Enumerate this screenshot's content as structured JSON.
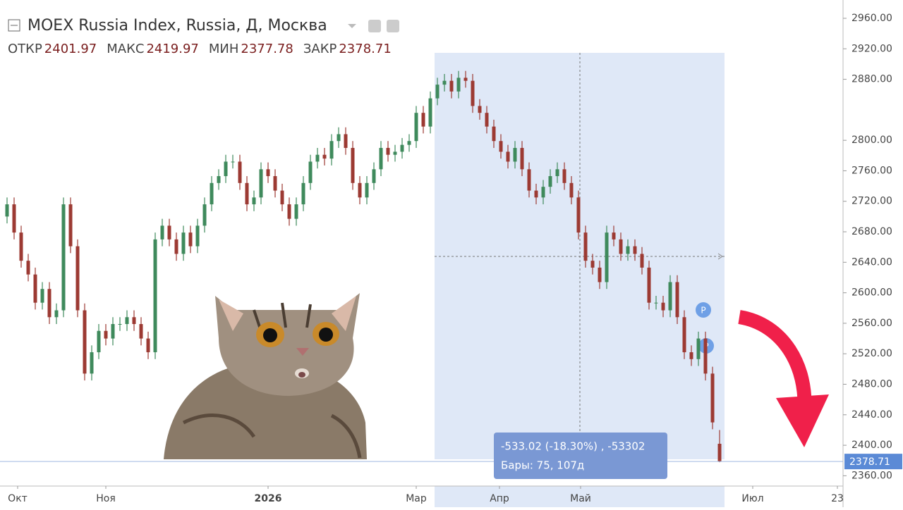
{
  "chart_data": {
    "type": "candlestick",
    "title": "MOEX Russia Index, Russia, Д, Москва",
    "ohlc_labels": [
      "ОТКР",
      "МАКС",
      "МИН",
      "ЗАКР"
    ],
    "ohlc_values": [
      2401.97,
      2419.97,
      2377.78,
      2378.71
    ],
    "last_price": 2378.71,
    "measure_label": [
      "-533.02 (-18.30%) , -53302",
      "Бары: 75, 107д"
    ],
    "up_color": "#3f8a5c",
    "down_color": "#9c3a33",
    "xlim": [
      0,
      119.5
    ],
    "xticks": [
      {
        "value": 2.5,
        "label": "Окт"
      },
      {
        "value": 15,
        "label": "Ноя"
      },
      {
        "value": 38,
        "label": "2026"
      },
      {
        "value": 59,
        "label": "Мар"
      },
      {
        "value": 70.8,
        "label": "Апр"
      },
      {
        "value": 82.3,
        "label": "Май"
      },
      {
        "value": 106.7,
        "label": "Июл"
      },
      {
        "value": 118.7,
        "label": "23"
      }
    ],
    "ylim": [
      2346.5,
      2984
    ],
    "yticks": [
      {
        "value": 2960,
        "label": "2960.00"
      },
      {
        "value": 2920,
        "label": "2920.00"
      },
      {
        "value": 2880,
        "label": "2880.00"
      },
      {
        "value": 2800,
        "label": "2800.00"
      },
      {
        "value": 2760,
        "label": "2760.00"
      },
      {
        "value": 2720,
        "label": "2720.00"
      },
      {
        "value": 2680,
        "label": "2680.00"
      },
      {
        "value": 2640,
        "label": "2640.00"
      },
      {
        "value": 2600,
        "label": "2600.00"
      },
      {
        "value": 2560,
        "label": "2560.00"
      },
      {
        "value": 2520,
        "label": "2520.00"
      },
      {
        "value": 2480,
        "label": "2480.00"
      },
      {
        "value": 2440,
        "label": "2440.00"
      },
      {
        "value": 2400,
        "label": "2400.00"
      },
      {
        "value": 2360,
        "label": "2360.00"
      }
    ],
    "x": [
      1,
      2,
      3,
      4,
      5,
      6,
      7,
      8,
      9,
      10,
      11,
      12,
      13,
      14,
      15,
      16,
      17,
      18,
      19,
      20,
      21,
      22,
      23,
      24,
      25,
      26,
      27,
      28,
      29,
      30,
      31,
      32,
      33,
      34,
      35,
      36,
      37,
      38,
      39,
      40,
      41,
      42,
      43,
      44,
      45,
      46,
      47,
      48,
      49,
      50,
      51,
      52,
      53,
      54,
      55,
      56,
      57,
      58,
      59,
      60,
      61,
      62,
      63,
      64,
      65,
      66,
      67,
      68,
      69,
      70,
      71,
      72,
      73,
      74,
      75,
      76,
      77,
      78,
      79,
      80,
      81,
      82,
      83,
      84,
      85,
      86,
      87,
      88,
      89,
      90,
      91,
      92,
      93,
      94,
      95,
      96,
      97,
      98,
      99,
      100,
      101,
      102
    ],
    "open": [
      2700,
      2716,
      2679,
      2642,
      2624,
      2587,
      2605,
      2568,
      2577,
      2716,
      2661,
      2577,
      2494,
      2522,
      2550,
      2540,
      2559,
      2559,
      2568,
      2559,
      2540,
      2522,
      2670,
      2688,
      2670,
      2651,
      2679,
      2661,
      2688,
      2716,
      2744,
      2753,
      2772,
      2772,
      2744,
      2716,
      2725,
      2762,
      2753,
      2734,
      2716,
      2697,
      2716,
      2744,
      2772,
      2781,
      2776,
      2799,
      2808,
      2790,
      2744,
      2725,
      2744,
      2762,
      2790,
      2781,
      2785,
      2794,
      2799,
      2836,
      2818,
      2855,
      2873,
      2878,
      2864,
      2882,
      2878,
      2845,
      2836,
      2818,
      2799,
      2785,
      2772,
      2790,
      2762,
      2734,
      2725,
      2739,
      2753,
      2762,
      2744,
      2725,
      2679,
      2642,
      2633,
      2614,
      2679,
      2670,
      2651,
      2661,
      2651,
      2633,
      2587,
      2587,
      2577,
      2614,
      2568,
      2522,
      2513,
      2540,
      2494,
      2401.97
    ],
    "high": [
      2725,
      2725,
      2688,
      2651,
      2633,
      2614,
      2614,
      2586,
      2725,
      2725,
      2670,
      2586,
      2531,
      2559,
      2559,
      2568,
      2568,
      2577,
      2577,
      2568,
      2549,
      2679,
      2697,
      2697,
      2679,
      2688,
      2688,
      2697,
      2725,
      2753,
      2762,
      2781,
      2781,
      2781,
      2753,
      2734,
      2771,
      2771,
      2762,
      2743,
      2725,
      2725,
      2753,
      2781,
      2790,
      2790,
      2808,
      2817,
      2817,
      2799,
      2753,
      2753,
      2771,
      2799,
      2799,
      2794,
      2803,
      2808,
      2845,
      2845,
      2864,
      2882,
      2887,
      2887,
      2891,
      2891,
      2887,
      2854,
      2845,
      2827,
      2808,
      2794,
      2799,
      2799,
      2771,
      2743,
      2748,
      2762,
      2771,
      2771,
      2753,
      2734,
      2688,
      2651,
      2642,
      2688,
      2688,
      2679,
      2670,
      2670,
      2660,
      2642,
      2596,
      2596,
      2623,
      2623,
      2577,
      2531,
      2549,
      2549,
      2503,
      2419.97
    ],
    "low": [
      2691,
      2670,
      2633,
      2615,
      2578,
      2578,
      2559,
      2559,
      2568,
      2652,
      2568,
      2485,
      2485,
      2513,
      2531,
      2531,
      2550,
      2550,
      2550,
      2531,
      2513,
      2513,
      2661,
      2661,
      2642,
      2642,
      2652,
      2652,
      2679,
      2707,
      2735,
      2744,
      2763,
      2735,
      2707,
      2707,
      2716,
      2744,
      2725,
      2707,
      2688,
      2688,
      2707,
      2735,
      2763,
      2767,
      2767,
      2790,
      2781,
      2735,
      2716,
      2716,
      2735,
      2753,
      2772,
      2772,
      2776,
      2785,
      2790,
      2809,
      2809,
      2846,
      2864,
      2855,
      2855,
      2869,
      2836,
      2827,
      2809,
      2790,
      2776,
      2763,
      2763,
      2753,
      2725,
      2716,
      2716,
      2730,
      2744,
      2735,
      2716,
      2670,
      2633,
      2624,
      2605,
      2605,
      2661,
      2642,
      2642,
      2642,
      2624,
      2578,
      2578,
      2568,
      2568,
      2559,
      2513,
      2504,
      2504,
      2485,
      2421,
      2377.78
    ],
    "close": [
      2716,
      2679,
      2642,
      2624,
      2587,
      2605,
      2568,
      2577,
      2716,
      2661,
      2577,
      2494,
      2522,
      2550,
      2540,
      2559,
      2559,
      2568,
      2559,
      2540,
      2522,
      2670,
      2688,
      2670,
      2651,
      2679,
      2661,
      2688,
      2716,
      2744,
      2753,
      2772,
      2772,
      2744,
      2716,
      2725,
      2762,
      2753,
      2734,
      2716,
      2697,
      2716,
      2744,
      2772,
      2781,
      2776,
      2799,
      2808,
      2790,
      2744,
      2725,
      2744,
      2762,
      2790,
      2781,
      2785,
      2794,
      2799,
      2836,
      2818,
      2855,
      2873,
      2878,
      2864,
      2882,
      2878,
      2845,
      2836,
      2818,
      2799,
      2785,
      2772,
      2790,
      2762,
      2734,
      2725,
      2739,
      2753,
      2762,
      2744,
      2725,
      2679,
      2642,
      2633,
      2614,
      2679,
      2670,
      2651,
      2661,
      2651,
      2633,
      2587,
      2587,
      2577,
      2614,
      2568,
      2522,
      2513,
      2540,
      2494,
      2430,
      2378.71
    ]
  }
}
